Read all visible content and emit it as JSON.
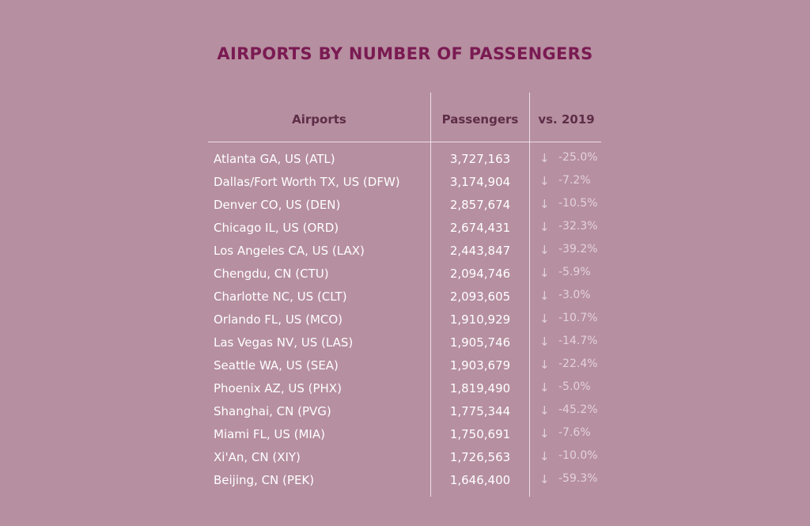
{
  "title": "AIRPORTS BY NUMBER OF PASSENGERS",
  "chart_data": {
    "type": "table",
    "title": "AIRPORTS BY NUMBER OF PASSENGERS",
    "columns": [
      "Airports",
      "Passengers",
      "vs. 2019"
    ],
    "rows": [
      {
        "airport": "Atlanta GA, US (ATL)",
        "passengers": "3,727,163",
        "change": "-25.0%"
      },
      {
        "airport": "Dallas/Fort Worth TX, US (DFW)",
        "passengers": "3,174,904",
        "change": "-7.2%"
      },
      {
        "airport": "Denver CO, US (DEN)",
        "passengers": "2,857,674",
        "change": "-10.5%"
      },
      {
        "airport": "Chicago IL, US (ORD)",
        "passengers": "2,674,431",
        "change": "-32.3%"
      },
      {
        "airport": "Los Angeles CA, US (LAX)",
        "passengers": "2,443,847",
        "change": "-39.2%"
      },
      {
        "airport": "Chengdu, CN (CTU)",
        "passengers": "2,094,746",
        "change": "-5.9%"
      },
      {
        "airport": "Charlotte NC, US (CLT)",
        "passengers": "2,093,605",
        "change": "-3.0%"
      },
      {
        "airport": "Orlando FL, US (MCO)",
        "passengers": "1,910,929",
        "change": "-10.7%"
      },
      {
        "airport": "Las Vegas NV, US (LAS)",
        "passengers": "1,905,746",
        "change": "-14.7%"
      },
      {
        "airport": "Seattle WA, US (SEA)",
        "passengers": "1,903,679",
        "change": "-22.4%"
      },
      {
        "airport": "Phoenix AZ, US (PHX)",
        "passengers": "1,819,490",
        "change": "-5.0%"
      },
      {
        "airport": "Shanghai, CN (PVG)",
        "passengers": "1,775,344",
        "change": "-45.2%"
      },
      {
        "airport": "Miami FL, US (MIA)",
        "passengers": "1,750,691",
        "change": "-7.6%"
      },
      {
        "airport": "Xi'An, CN (XIY)",
        "passengers": "1,726,563",
        "change": "-10.0%"
      },
      {
        "airport": "Beijing, CN (PEK)",
        "passengers": "1,646,400",
        "change": "-59.3%"
      }
    ],
    "arrow_icon": "arrow-down-icon",
    "colors": {
      "background": "#b68fa0",
      "title": "#7a1a52",
      "header": "#5e2d47",
      "text": "#ffffff",
      "change": "#e4d2db",
      "rules": "#ece0e6"
    }
  }
}
